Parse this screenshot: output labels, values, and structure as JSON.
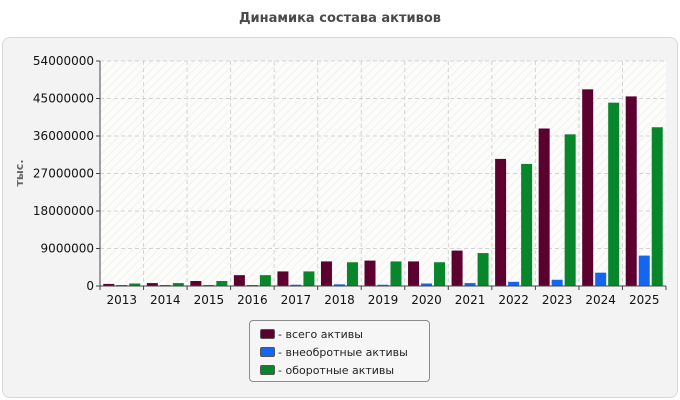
{
  "title": "Динамика состава активов",
  "colors": {
    "total": "#5c0030",
    "noncurrent": "#1466f0",
    "current": "#07862b"
  },
  "chart_data": {
    "type": "bar",
    "title": "Динамика состава активов",
    "xlabel": "",
    "ylabel": "тыс.",
    "ylim": [
      0,
      54000000
    ],
    "yticks": [
      0,
      9000000,
      18000000,
      27000000,
      36000000,
      45000000,
      54000000
    ],
    "grid": true,
    "legend_position": "bottom-center",
    "categories": [
      "2013",
      "2014",
      "2015",
      "2016",
      "2017",
      "2018",
      "2019",
      "2020",
      "2021",
      "2022",
      "2023",
      "2024",
      "2025"
    ],
    "series": [
      {
        "name": "- всего активы",
        "color": "#5c0030",
        "values": [
          500000,
          700000,
          1200000,
          2600000,
          3500000,
          5900000,
          6100000,
          5900000,
          8500000,
          30500000,
          37800000,
          47200000,
          45500000
        ]
      },
      {
        "name": "- внеобротные активы",
        "color": "#1466f0",
        "values": [
          100000,
          100000,
          100000,
          200000,
          300000,
          400000,
          300000,
          600000,
          700000,
          1000000,
          1500000,
          3200000,
          7300000
        ]
      },
      {
        "name": "- оборотные активы",
        "color": "#07862b",
        "values": [
          600000,
          700000,
          1200000,
          2600000,
          3500000,
          5700000,
          5900000,
          5700000,
          7900000,
          29300000,
          36400000,
          44000000,
          38100000
        ]
      }
    ]
  }
}
